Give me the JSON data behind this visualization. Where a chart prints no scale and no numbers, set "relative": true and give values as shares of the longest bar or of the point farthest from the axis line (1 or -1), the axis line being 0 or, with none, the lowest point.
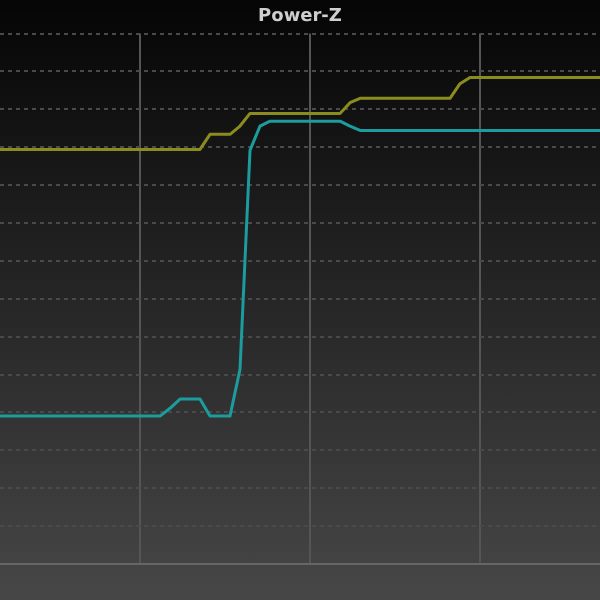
{
  "chart_data": {
    "type": "line",
    "title": "Power-Z",
    "relative": true,
    "grid": true,
    "legend": false,
    "marker": "none",
    "line_style": "solid",
    "categories": [
      null,
      null,
      null,
      null,
      null,
      null,
      null,
      null,
      null,
      null,
      null,
      null,
      null,
      null,
      null,
      null,
      null,
      null,
      null,
      null,
      null,
      null,
      null,
      null,
      null,
      null,
      null,
      null,
      null,
      null,
      null,
      null,
      null,
      null,
      null,
      null,
      null,
      null,
      null,
      null,
      null,
      null,
      null,
      null,
      null,
      null,
      null,
      null,
      null,
      null,
      null,
      null,
      null,
      null,
      null,
      null,
      null,
      null,
      null,
      null,
      null
    ],
    "series": [
      {
        "color": "#8c8c1e",
        "values": [
          0.852,
          0.852,
          0.852,
          0.852,
          0.852,
          0.852,
          0.852,
          0.852,
          0.852,
          0.852,
          0.852,
          0.852,
          0.852,
          0.852,
          0.852,
          0.852,
          0.852,
          0.852,
          0.852,
          0.852,
          0.852,
          0.883,
          0.883,
          0.883,
          0.9,
          0.926,
          0.926,
          0.926,
          0.926,
          0.926,
          0.926,
          0.926,
          0.926,
          0.926,
          0.926,
          0.948,
          0.957,
          0.957,
          0.957,
          0.957,
          0.957,
          0.957,
          0.957,
          0.957,
          0.957,
          0.957,
          0.987,
          1,
          1,
          1,
          1,
          1,
          1,
          1,
          1,
          1,
          1,
          1,
          1,
          1,
          1
        ]
      },
      {
        "color": "#1c9c9c",
        "values": [
          0.304,
          0.304,
          0.304,
          0.304,
          0.304,
          0.304,
          0.304,
          0.304,
          0.304,
          0.304,
          0.304,
          0.304,
          0.304,
          0.304,
          0.304,
          0.304,
          0.304,
          0.32,
          0.339,
          0.339,
          0.339,
          0.304,
          0.304,
          0.304,
          0.4,
          0.85,
          0.9,
          0.91,
          0.91,
          0.91,
          0.91,
          0.91,
          0.91,
          0.91,
          0.91,
          0.9,
          0.891,
          0.891,
          0.891,
          0.891,
          0.891,
          0.891,
          0.891,
          0.891,
          0.891,
          0.891,
          0.891,
          0.891,
          0.891,
          0.891,
          0.891,
          0.891,
          0.891,
          0.891,
          0.891,
          0.891,
          0.891,
          0.891,
          0.891,
          0.891,
          0.891
        ]
      }
    ]
  }
}
